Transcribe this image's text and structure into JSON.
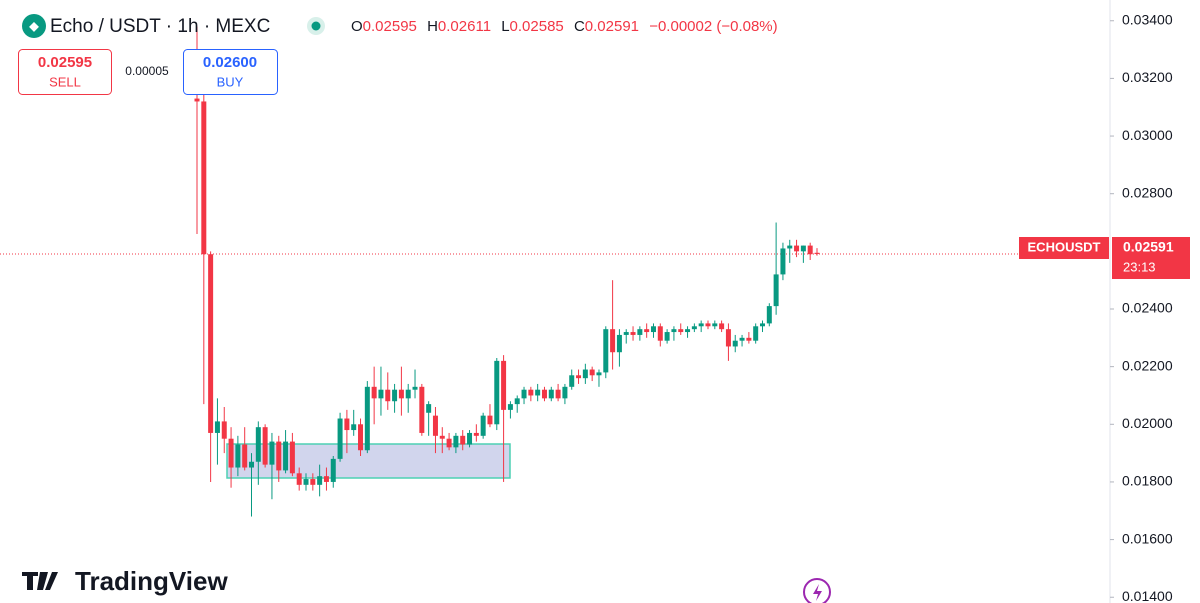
{
  "header": {
    "symbol": "Echo / USDT · 1h · MEXC",
    "o_label": "O",
    "h_label": "H",
    "l_label": "L",
    "c_label": "C",
    "change": "−0.00002 (−0.08%)"
  },
  "trade": {
    "sell_price": "0.02595",
    "sell_label": "SELL",
    "spread": "0.00005",
    "buy_price": "0.02600",
    "buy_label": "BUY"
  },
  "price_tag": {
    "symbol": "ECHOUSDT",
    "price": "0.02591",
    "countdown": "23:13"
  },
  "branding": "TradingView",
  "chart_data": {
    "type": "candlestick",
    "up_color": "#089981",
    "down_color": "#f23645",
    "ylim": [
      0.0138,
      0.03472
    ],
    "yticks": [
      {
        "value": 0.034,
        "label": "0.03400"
      },
      {
        "value": 0.032,
        "label": "0.03200"
      },
      {
        "value": 0.03,
        "label": "0.03000"
      },
      {
        "value": 0.028,
        "label": "0.02800"
      },
      {
        "value": 0.024,
        "label": "0.02400"
      },
      {
        "value": 0.022,
        "label": "0.02200"
      },
      {
        "value": 0.02,
        "label": "0.02000"
      },
      {
        "value": 0.018,
        "label": "0.01800"
      },
      {
        "value": 0.016,
        "label": "0.01600"
      },
      {
        "value": 0.014,
        "label": "0.01400"
      }
    ],
    "open": [
      0.0313,
      0.0312,
      0.0259,
      0.0197,
      0.0201,
      0.0195,
      0.0185,
      0.0193,
      0.0185,
      0.0187,
      0.0199,
      0.0186,
      0.0194,
      0.0184,
      0.0194,
      0.0183,
      0.0179,
      0.0181,
      0.0179,
      0.0182,
      0.018,
      0.0188,
      0.0202,
      0.0198,
      0.02,
      0.0191,
      0.0213,
      0.0209,
      0.0212,
      0.0208,
      0.0212,
      0.0209,
      0.0212,
      0.0213,
      0.0204,
      0.0203,
      0.0196,
      0.0195,
      0.0192,
      0.0196,
      0.0193,
      0.0197,
      0.0196,
      0.0203,
      0.02,
      0.0222,
      0.0205,
      0.0207,
      0.0209,
      0.0212,
      0.021,
      0.0212,
      0.0209,
      0.0212,
      0.0209,
      0.0213,
      0.0217,
      0.0216,
      0.0219,
      0.0217,
      0.0218,
      0.0233,
      0.0225,
      0.0231,
      0.0232,
      0.0231,
      0.0233,
      0.0232,
      0.0234,
      0.0229,
      0.0232,
      0.0233,
      0.0232,
      0.0233,
      0.0234,
      0.0235,
      0.0234,
      0.0235,
      0.0233,
      0.0227,
      0.0229,
      0.023,
      0.0229,
      0.0234,
      0.0235,
      0.0241,
      0.0252,
      0.0261,
      0.0262,
      0.026,
      0.0262,
      0.02595
    ],
    "high": [
      0.0338,
      0.0315,
      0.026,
      0.0209,
      0.0206,
      0.0199,
      0.0196,
      0.0199,
      0.019,
      0.0201,
      0.02,
      0.0197,
      0.0196,
      0.0198,
      0.0197,
      0.0185,
      0.0183,
      0.0183,
      0.0186,
      0.0185,
      0.0189,
      0.0204,
      0.0205,
      0.0205,
      0.0202,
      0.0215,
      0.022,
      0.022,
      0.0218,
      0.0214,
      0.022,
      0.0214,
      0.0219,
      0.0214,
      0.0208,
      0.0206,
      0.0199,
      0.0197,
      0.0197,
      0.0198,
      0.0198,
      0.02,
      0.0204,
      0.0207,
      0.0223,
      0.0224,
      0.0208,
      0.021,
      0.0213,
      0.0213,
      0.0214,
      0.0213,
      0.0213,
      0.0214,
      0.0214,
      0.0219,
      0.0219,
      0.0221,
      0.022,
      0.0219,
      0.0234,
      0.025,
      0.0233,
      0.0233,
      0.0234,
      0.0234,
      0.0235,
      0.0235,
      0.0235,
      0.0233,
      0.0234,
      0.0235,
      0.0234,
      0.0235,
      0.0236,
      0.0236,
      0.0236,
      0.0236,
      0.0235,
      0.0231,
      0.0231,
      0.0232,
      0.0235,
      0.0236,
      0.0242,
      0.027,
      0.0263,
      0.0264,
      0.0264,
      0.0262,
      0.0263,
      0.02611
    ],
    "low": [
      0.0266,
      0.0207,
      0.018,
      0.0186,
      0.019,
      0.0178,
      0.0182,
      0.0184,
      0.0168,
      0.0179,
      0.0185,
      0.0174,
      0.018,
      0.0183,
      0.0182,
      0.0177,
      0.0177,
      0.0177,
      0.0175,
      0.0177,
      0.0178,
      0.0187,
      0.019,
      0.0196,
      0.0189,
      0.019,
      0.02,
      0.0203,
      0.0205,
      0.0204,
      0.0203,
      0.0204,
      0.0209,
      0.0196,
      0.0196,
      0.019,
      0.019,
      0.0191,
      0.019,
      0.0191,
      0.0192,
      0.0194,
      0.0195,
      0.0199,
      0.0198,
      0.018,
      0.0202,
      0.0204,
      0.0207,
      0.0208,
      0.0208,
      0.0208,
      0.0208,
      0.0208,
      0.0207,
      0.0212,
      0.0214,
      0.0214,
      0.0215,
      0.0213,
      0.0216,
      0.0219,
      0.022,
      0.0228,
      0.0229,
      0.0229,
      0.023,
      0.023,
      0.0227,
      0.0228,
      0.0229,
      0.0231,
      0.023,
      0.0232,
      0.0232,
      0.0233,
      0.0233,
      0.0232,
      0.0222,
      0.0225,
      0.0227,
      0.0228,
      0.0228,
      0.0232,
      0.0234,
      0.0238,
      0.025,
      0.0256,
      0.0258,
      0.0256,
      0.0257,
      0.02585
    ],
    "close": [
      0.0312,
      0.0259,
      0.0197,
      0.0201,
      0.0195,
      0.0185,
      0.0193,
      0.0185,
      0.0187,
      0.0199,
      0.0186,
      0.0194,
      0.0184,
      0.0194,
      0.0183,
      0.0179,
      0.0181,
      0.0179,
      0.0182,
      0.018,
      0.0188,
      0.0202,
      0.0198,
      0.02,
      0.0191,
      0.0213,
      0.0209,
      0.0212,
      0.0208,
      0.0212,
      0.0209,
      0.0212,
      0.0213,
      0.0197,
      0.0207,
      0.0196,
      0.0195,
      0.0192,
      0.0196,
      0.0193,
      0.0197,
      0.0196,
      0.0203,
      0.02,
      0.0222,
      0.0205,
      0.0207,
      0.0209,
      0.0212,
      0.021,
      0.0212,
      0.0209,
      0.0212,
      0.0209,
      0.0213,
      0.0217,
      0.0216,
      0.0219,
      0.0217,
      0.0218,
      0.0233,
      0.0225,
      0.0231,
      0.0232,
      0.0231,
      0.0233,
      0.0232,
      0.0234,
      0.0229,
      0.0232,
      0.0233,
      0.0232,
      0.0233,
      0.0234,
      0.0235,
      0.0234,
      0.0235,
      0.0233,
      0.0227,
      0.0229,
      0.023,
      0.0229,
      0.0234,
      0.0235,
      0.0241,
      0.0252,
      0.0261,
      0.0262,
      0.026,
      0.0262,
      0.0259,
      0.02591
    ]
  }
}
